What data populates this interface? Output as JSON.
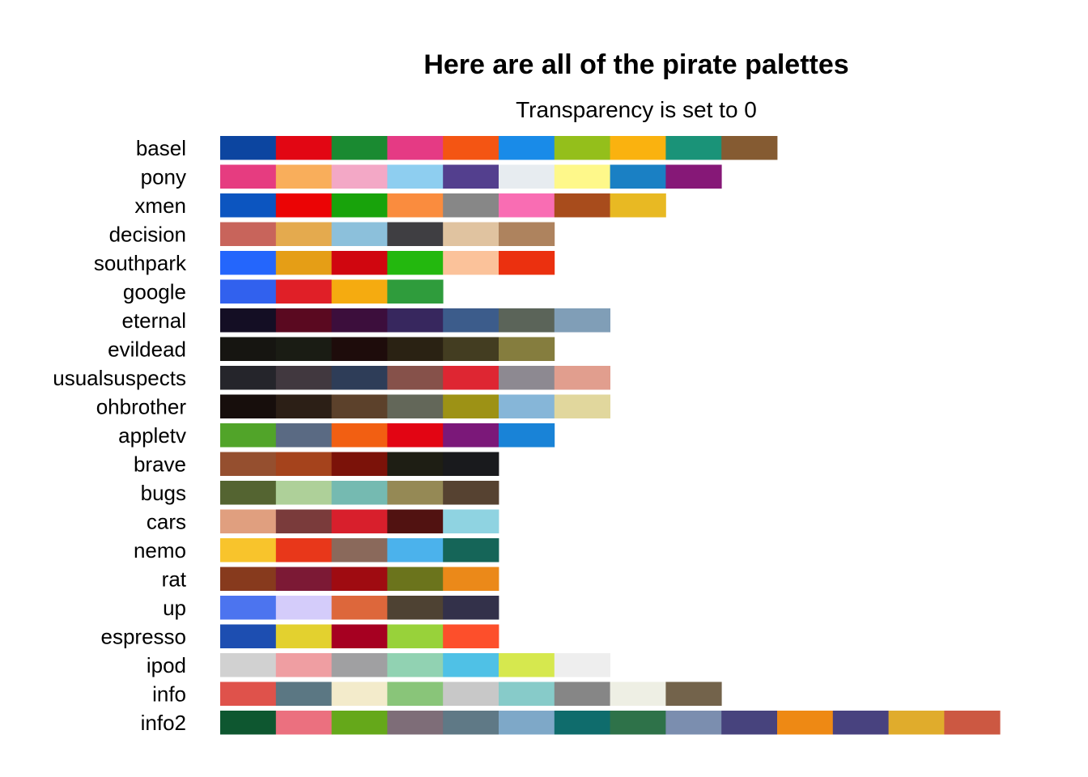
{
  "chart_data": {
    "type": "heatmap",
    "title": "Here are all of the pirate palettes",
    "subtitle": "Transparency is set to 0",
    "palettes": [
      {
        "name": "basel",
        "colors": [
          "#0C45A0",
          "#E20613",
          "#1A8A31",
          "#E53A84",
          "#F45513",
          "#198BE8",
          "#94BF1B",
          "#FAB20F",
          "#1A9378",
          "#855B32"
        ]
      },
      {
        "name": "pony",
        "colors": [
          "#E63C80",
          "#F9AE5B",
          "#F3A8C6",
          "#8ECEF0",
          "#533F8E",
          "#E7ECF0",
          "#FEF88A",
          "#1A80C4",
          "#861877"
        ]
      },
      {
        "name": "xmen",
        "colors": [
          "#0C55C0",
          "#EB0405",
          "#18A30B",
          "#FA8C3E",
          "#878787",
          "#F96DB3",
          "#A84C1C",
          "#E8B923"
        ]
      },
      {
        "name": "decision",
        "colors": [
          "#C8645B",
          "#E4AA4E",
          "#8CC0DB",
          "#3F3E42",
          "#E0C3A0",
          "#AE835E"
        ]
      },
      {
        "name": "southpark",
        "colors": [
          "#2466FC",
          "#E59E16",
          "#D0060F",
          "#23B80E",
          "#FBC29A",
          "#EB300F"
        ]
      },
      {
        "name": "google",
        "colors": [
          "#3161EE",
          "#E01F27",
          "#F5AB10",
          "#2F9C3C"
        ]
      },
      {
        "name": "eternal",
        "colors": [
          "#140E24",
          "#5A0920",
          "#3C0E3C",
          "#37275E",
          "#3C5C8B",
          "#5B6459",
          "#809EB7"
        ]
      },
      {
        "name": "evildead",
        "colors": [
          "#161511",
          "#1A1C14",
          "#1E0C0B",
          "#2A2213",
          "#433D21",
          "#857D3E"
        ]
      },
      {
        "name": "usualsuspects",
        "colors": [
          "#25252B",
          "#41383F",
          "#2E3D58",
          "#86514A",
          "#DE2632",
          "#8D8991",
          "#E19E8E"
        ]
      },
      {
        "name": "ohbrother",
        "colors": [
          "#170E0C",
          "#2C1F16",
          "#5C412B",
          "#636759",
          "#9D9215",
          "#86B6D8",
          "#E1D79D"
        ]
      },
      {
        "name": "appletv",
        "colors": [
          "#51A429",
          "#5A6A83",
          "#F25F12",
          "#E20513",
          "#7B1879",
          "#1983D7"
        ]
      },
      {
        "name": "brave",
        "colors": [
          "#954F2F",
          "#A5431C",
          "#7B1209",
          "#1E1E14",
          "#191A1D"
        ]
      },
      {
        "name": "bugs",
        "colors": [
          "#546431",
          "#AED099",
          "#75BAB1",
          "#958955",
          "#564231"
        ]
      },
      {
        "name": "cars",
        "colors": [
          "#E09F7F",
          "#7A3B3B",
          "#D81F2C",
          "#511211",
          "#8FD3E1"
        ]
      },
      {
        "name": "nemo",
        "colors": [
          "#F8C42C",
          "#E8371A",
          "#8A695B",
          "#4BB2EC",
          "#156558"
        ]
      },
      {
        "name": "rat",
        "colors": [
          "#873A1D",
          "#7C1935",
          "#9F0B11",
          "#6B741C",
          "#EB8919"
        ]
      },
      {
        "name": "up",
        "colors": [
          "#4C74EF",
          "#D4CCFA",
          "#DD673B",
          "#4E4233",
          "#33314A"
        ]
      },
      {
        "name": "espresso",
        "colors": [
          "#1D4EB1",
          "#E3D12F",
          "#A60021",
          "#98D23A",
          "#FD4F2B"
        ]
      },
      {
        "name": "ipod",
        "colors": [
          "#D1D1D1",
          "#EF9EA2",
          "#A0A0A2",
          "#91D2B2",
          "#4FC1E6",
          "#D6E84E",
          "#EEEEEE"
        ]
      },
      {
        "name": "info",
        "colors": [
          "#DF524B",
          "#5B7783",
          "#F3EBCB",
          "#89C579",
          "#C8C8C8",
          "#87CBC9",
          "#868686",
          "#EEEFE4",
          "#73634B"
        ]
      },
      {
        "name": "info2",
        "colors": [
          "#0E5730",
          "#EB707F",
          "#65A81A",
          "#7E6D78",
          "#5F7986",
          "#7EA8C8",
          "#0F6C6C",
          "#2E7249",
          "#7B8EAF",
          "#47437D",
          "#EE8914",
          "#48427F",
          "#E0AC2C",
          "#CC5842"
        ]
      }
    ]
  }
}
